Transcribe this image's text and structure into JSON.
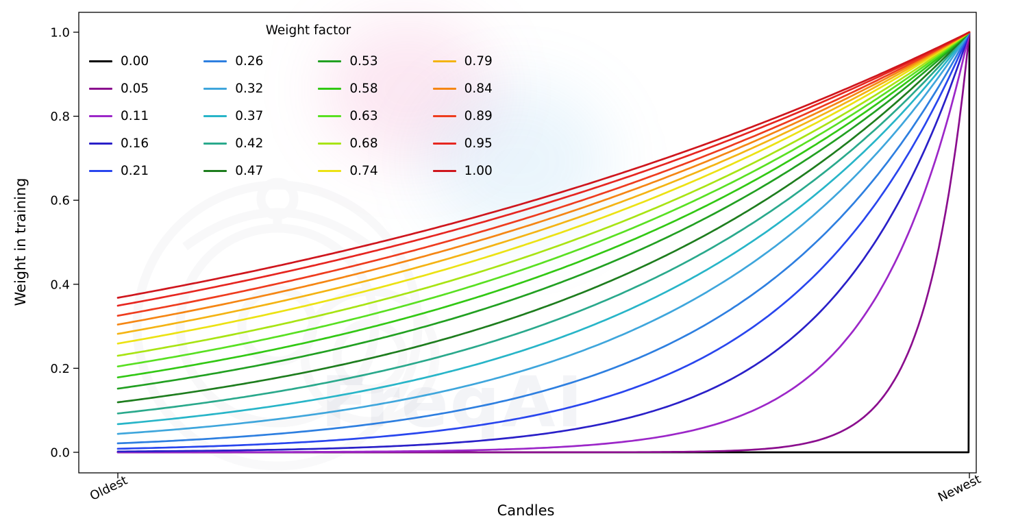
{
  "watermark": {
    "text": "FreqAI"
  },
  "chart_data": {
    "type": "line",
    "title": "",
    "xlabel": "Candles",
    "ylabel": "Weight in training",
    "x_tick_labels": [
      "Oldest",
      "Newest"
    ],
    "ylim": [
      -0.05,
      1.05
    ],
    "y_ticks": [
      0.0,
      0.2,
      0.4,
      0.6,
      0.8,
      1.0
    ],
    "grid": false,
    "legend_title": "Weight factor",
    "legend_position": "upper left",
    "legend_columns": 4,
    "curve": "weight(x) = exp(-(1 - x) / weight_factor), x from 0 (Oldest) to 1 (Newest); every curve reaches 1.0 at Newest; factor 0.00 is flat at 0",
    "series": [
      {
        "name": "0.00",
        "weight_factor": 0.0,
        "color": "#000000",
        "y_oldest": 0.0,
        "y_newest": 1.0
      },
      {
        "name": "0.05",
        "weight_factor": 0.05,
        "color": "#8b0e8e",
        "y_oldest": 0.0,
        "y_newest": 1.0
      },
      {
        "name": "0.11",
        "weight_factor": 0.11,
        "color": "#9c27c8",
        "y_oldest": 0.0001,
        "y_newest": 1.0
      },
      {
        "name": "0.16",
        "weight_factor": 0.16,
        "color": "#2a20c8",
        "y_oldest": 0.0019,
        "y_newest": 1.0
      },
      {
        "name": "0.21",
        "weight_factor": 0.21,
        "color": "#2946ee",
        "y_oldest": 0.0086,
        "y_newest": 1.0
      },
      {
        "name": "0.26",
        "weight_factor": 0.26,
        "color": "#2e7fe0",
        "y_oldest": 0.0214,
        "y_newest": 1.0
      },
      {
        "name": "0.32",
        "weight_factor": 0.32,
        "color": "#3fa6dc",
        "y_oldest": 0.0439,
        "y_newest": 1.0
      },
      {
        "name": "0.37",
        "weight_factor": 0.37,
        "color": "#28b5c8",
        "y_oldest": 0.067,
        "y_newest": 1.0
      },
      {
        "name": "0.42",
        "weight_factor": 0.42,
        "color": "#2aa98c",
        "y_oldest": 0.0924,
        "y_newest": 1.0
      },
      {
        "name": "0.47",
        "weight_factor": 0.47,
        "color": "#1e7d1e",
        "y_oldest": 0.1191,
        "y_newest": 1.0
      },
      {
        "name": "0.53",
        "weight_factor": 0.53,
        "color": "#22a022",
        "y_oldest": 0.1516,
        "y_newest": 1.0
      },
      {
        "name": "0.58",
        "weight_factor": 0.58,
        "color": "#32c814",
        "y_oldest": 0.1784,
        "y_newest": 1.0
      },
      {
        "name": "0.63",
        "weight_factor": 0.63,
        "color": "#59e022",
        "y_oldest": 0.2045,
        "y_newest": 1.0
      },
      {
        "name": "0.68",
        "weight_factor": 0.68,
        "color": "#a8e414",
        "y_oldest": 0.2298,
        "y_newest": 1.0
      },
      {
        "name": "0.74",
        "weight_factor": 0.74,
        "color": "#ece214",
        "y_oldest": 0.2589,
        "y_newest": 1.0
      },
      {
        "name": "0.79",
        "weight_factor": 0.79,
        "color": "#f4b414",
        "y_oldest": 0.282,
        "y_newest": 1.0
      },
      {
        "name": "0.84",
        "weight_factor": 0.84,
        "color": "#f58614",
        "y_oldest": 0.3041,
        "y_newest": 1.0
      },
      {
        "name": "0.89",
        "weight_factor": 0.89,
        "color": "#ee3c1e",
        "y_oldest": 0.3251,
        "y_newest": 1.0
      },
      {
        "name": "0.95",
        "weight_factor": 0.95,
        "color": "#e62620",
        "y_oldest": 0.3489,
        "y_newest": 1.0
      },
      {
        "name": "1.00",
        "weight_factor": 1.0,
        "color": "#cf161d",
        "y_oldest": 0.3679,
        "y_newest": 1.0
      }
    ]
  }
}
